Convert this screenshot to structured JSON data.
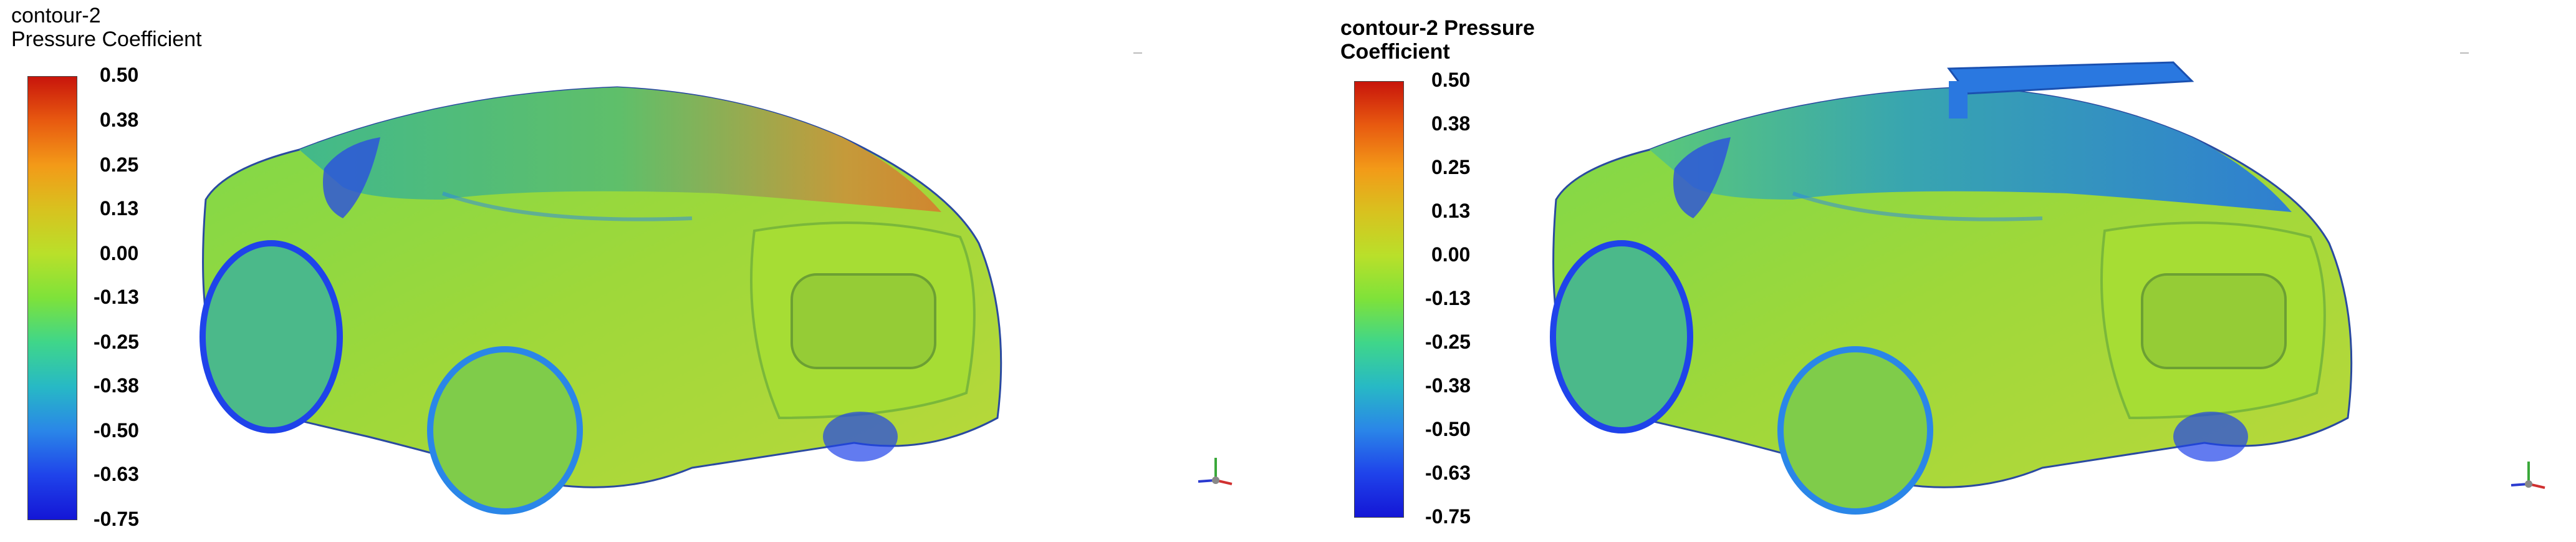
{
  "panels": [
    {
      "title_line1": "contour-2",
      "title_line2": "Pressure Coefficient",
      "ticks": [
        "0.50",
        "0.38",
        "0.25",
        "0.13",
        "0.00",
        "-0.13",
        "-0.25",
        "-0.38",
        "-0.50",
        "-0.63",
        "-0.75"
      ]
    },
    {
      "title_line1": "contour-2 Pressure",
      "title_line2": "Coefficient",
      "ticks": [
        "0.50",
        "0.38",
        "0.25",
        "0.13",
        "0.00",
        "-0.13",
        "-0.25",
        "-0.38",
        "-0.50",
        "-0.63",
        "-0.75"
      ]
    }
  ],
  "colormap": [
    "#c8150b",
    "#e85a10",
    "#f39a18",
    "#d8c21f",
    "#b9e02a",
    "#7ee23a",
    "#3fd68a",
    "#27b9c5",
    "#2a86e8",
    "#1f43ea",
    "#1416d6"
  ],
  "icons": {
    "axis_triad": "axis-triad-icon"
  }
}
